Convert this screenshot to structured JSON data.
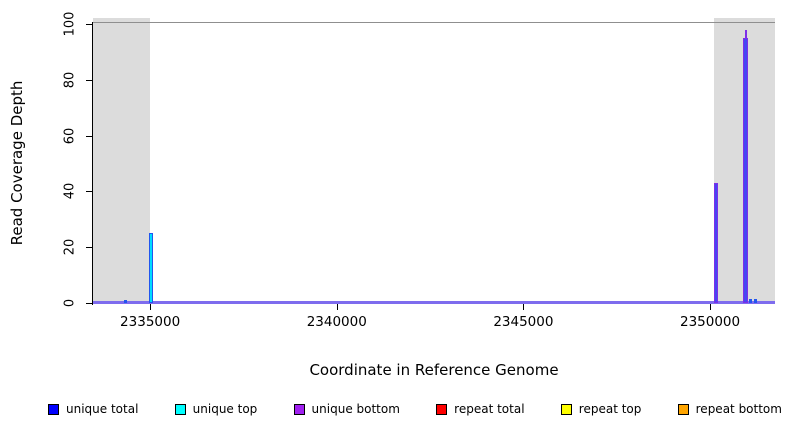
{
  "figure": {
    "xlabel": "Coordinate in Reference Genome",
    "ylabel": "Read Coverage Depth"
  },
  "colors": {
    "unique_total": "#0000ff",
    "unique_top": "#00ffff",
    "unique_bottom": "#a020f0",
    "repeat_total": "#ff0000",
    "repeat_top": "#ffff00",
    "repeat_bottom": "#ffa500",
    "repeat_region_shading": "#dcdcdc",
    "spike_blue": "#2255ee",
    "spike_cyan": "#00dcff",
    "spike_purple": "#7e2ee8",
    "spike_blue_fill": "#4646f2",
    "baseline": "#7e6cee",
    "axis": "#000000",
    "top_border": "#8f8f8f"
  },
  "legend": {
    "items": [
      {
        "label": "unique total",
        "color": "#0000ff"
      },
      {
        "label": "unique top",
        "color": "#00ffff"
      },
      {
        "label": "unique bottom",
        "color": "#a020f0"
      },
      {
        "label": "repeat total",
        "color": "#ff0000"
      },
      {
        "label": "repeat top",
        "color": "#ffff00"
      },
      {
        "label": "repeat bottom",
        "color": "#ffa500"
      }
    ]
  },
  "chart_data": {
    "type": "line",
    "title": "",
    "xlabel": "Coordinate in Reference Genome",
    "ylabel": "Read Coverage Depth",
    "xlim": [
      2333470,
      2351740
    ],
    "ylim": [
      0,
      100
    ],
    "xticks": [
      2335000,
      2340000,
      2345000,
      2350000
    ],
    "yticks": [
      0,
      20,
      40,
      60,
      80,
      100
    ],
    "grid": false,
    "legend_position": "bottom",
    "series_legend": [
      "unique total",
      "unique top",
      "unique bottom",
      "repeat total",
      "repeat top",
      "repeat bottom"
    ],
    "repeat_regions": [
      {
        "start": 2333470,
        "end": 2335010
      },
      {
        "start": 2350110,
        "end": 2351740
      }
    ],
    "baseline_depth": 0,
    "coverage_spikes": [
      {
        "coord": 2334350,
        "depth": 1,
        "series": "unique total",
        "fill": "spike_blue",
        "edge": "spike_blue",
        "width": 3
      },
      {
        "coord": 2335030,
        "depth": 25,
        "series": "unique total + unique top",
        "fill": "spike_cyan",
        "edge": "spike_blue",
        "width": 4
      },
      {
        "coord": 2350170,
        "depth": 43,
        "series": "unique total + unique bottom",
        "fill": "spike_blue_fill",
        "edge": "spike_purple",
        "width": 4
      },
      {
        "coord": 2350950,
        "depth": 98,
        "series": "unique bottom",
        "fill": "spike_purple",
        "edge": "spike_purple",
        "width": 2
      },
      {
        "coord": 2350955,
        "depth": 95,
        "series": "unique total + unique bottom",
        "fill": "spike_blue_fill",
        "edge": "spike_purple",
        "width": 5
      },
      {
        "coord": 2351090,
        "depth": 1.5,
        "series": "unique total",
        "fill": "spike_blue",
        "edge": "spike_blue",
        "width": 3
      },
      {
        "coord": 2351210,
        "depth": 1.5,
        "series": "unique total",
        "fill": "spike_blue",
        "edge": "spike_blue",
        "width": 3
      }
    ]
  }
}
